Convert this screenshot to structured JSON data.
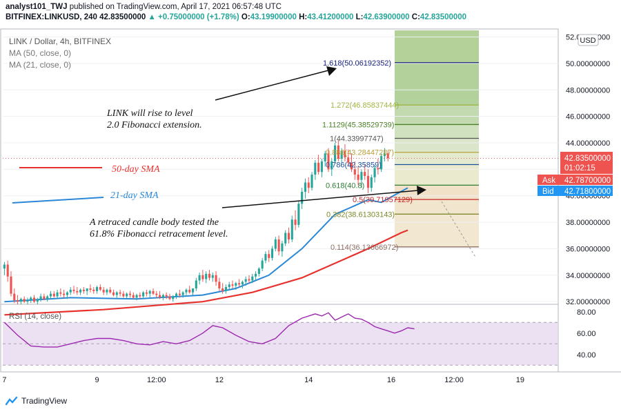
{
  "header": {
    "line1_user": "analyst101_TWJ",
    "line1_rest": " published on TradingView.com, April 17, 2021 06:57:48 UTC",
    "symbol": "BITFINEX:LINKUSD, 240",
    "price": "42.83500000",
    "change": "▲ +0.75000000 (+1.78%)",
    "o_label": "O:",
    "o": "43.19900000",
    "h_label": "H:",
    "h": "43.41200000",
    "l_label": "L:",
    "l": "42.63900000",
    "c_label": "C:",
    "c": "42.83500000"
  },
  "legend": {
    "title": "LINK / Dollar, 4h, BITFINEX",
    "ma50": "MA (50, close, 0)",
    "ma21": "MA (21, close, 0)"
  },
  "annotations": {
    "rise_line1": "LINK will rise  to level",
    "rise_line2": "2.0 Fibonacci extension.",
    "retrace_line1": "A retraced candle body tested the",
    "retrace_line2": "61.8% Fibonacci retracement level.",
    "sma50_label": "50-day SMA",
    "sma21_label": "21-day SMA"
  },
  "price_badges": {
    "currency": "USD",
    "last": "42.83500000",
    "countdown": "01:02:15",
    "ask_label": "Ask",
    "ask": "42.78700000",
    "bid_label": "Bid",
    "bid": "42.71800000"
  },
  "rsi": {
    "label": "RSI (14, close)"
  },
  "footer": {
    "brand": "TradingView"
  },
  "colors": {
    "up": "#26a69a",
    "down": "#ef5350",
    "sma50": "#e8312d",
    "sma21": "#2a87d6",
    "rsi_line": "#9c27b0",
    "rsi_band": "#e6d7ee",
    "fib_line": "#9eb542",
    "ask": "#ef5350",
    "bid": "#2196f3"
  },
  "chart_data": {
    "type": "candlestick",
    "ylim": [
      31.8,
      52.5
    ],
    "y_ticks": [
      {
        "v": 32,
        "label": "32.00000000"
      },
      {
        "v": 34,
        "label": "34.00000000"
      },
      {
        "v": 36,
        "label": "36.00000000"
      },
      {
        "v": 38,
        "label": "38.00000000"
      },
      {
        "v": 40,
        "label": "40.00000000"
      },
      {
        "v": 42,
        "label": "42.00000000"
      },
      {
        "v": 44,
        "label": "44.00000000"
      },
      {
        "v": 46,
        "label": "46.00000000"
      },
      {
        "v": 48,
        "label": "48.00000000"
      },
      {
        "v": 50,
        "label": "50.00000000"
      },
      {
        "v": 52,
        "label": "52.00000000"
      }
    ],
    "x_ticks": [
      {
        "i": 0,
        "label": "7"
      },
      {
        "i": 28,
        "label": "9"
      },
      {
        "i": 46,
        "label": "12:00"
      },
      {
        "i": 65,
        "label": "12"
      },
      {
        "i": 92,
        "label": "14"
      },
      {
        "i": 117,
        "label": "16"
      },
      {
        "i": 136,
        "label": "12:00"
      },
      {
        "i": 156,
        "label": "19"
      }
    ],
    "candles": [
      [
        34.5,
        35.0,
        34.0,
        34.8
      ],
      [
        34.8,
        35.1,
        33.5,
        33.9
      ],
      [
        33.9,
        34.3,
        32.4,
        32.6
      ],
      [
        32.6,
        33.0,
        31.9,
        32.1
      ],
      [
        32.1,
        32.5,
        31.8,
        32.0
      ],
      [
        32.0,
        32.3,
        31.8,
        32.2
      ],
      [
        32.2,
        32.4,
        31.9,
        32.0
      ],
      [
        32.0,
        32.3,
        31.8,
        32.1
      ],
      [
        32.1,
        32.4,
        31.9,
        32.3
      ],
      [
        32.3,
        32.5,
        31.9,
        32.0
      ],
      [
        32.0,
        32.3,
        31.8,
        32.2
      ],
      [
        32.2,
        32.6,
        32.0,
        32.4
      ],
      [
        32.4,
        32.6,
        32.1,
        32.2
      ],
      [
        32.2,
        32.5,
        32.0,
        32.4
      ],
      [
        32.4,
        32.8,
        32.2,
        32.6
      ],
      [
        32.6,
        32.8,
        32.3,
        32.4
      ],
      [
        32.4,
        32.9,
        32.2,
        32.7
      ],
      [
        32.7,
        33.0,
        32.4,
        32.6
      ],
      [
        32.6,
        32.9,
        32.3,
        32.5
      ],
      [
        32.5,
        32.8,
        32.2,
        32.7
      ],
      [
        32.7,
        33.1,
        32.5,
        32.9
      ],
      [
        32.9,
        33.2,
        32.6,
        32.8
      ],
      [
        32.8,
        33.1,
        32.5,
        32.7
      ],
      [
        32.7,
        33.0,
        32.5,
        32.9
      ],
      [
        32.9,
        33.1,
        32.6,
        32.8
      ],
      [
        32.8,
        33.0,
        32.5,
        33.0
      ],
      [
        33.0,
        33.3,
        32.7,
        32.9
      ],
      [
        32.9,
        33.1,
        32.6,
        32.8
      ],
      [
        32.8,
        33.2,
        32.6,
        33.1
      ],
      [
        33.1,
        33.3,
        32.8,
        32.9
      ],
      [
        32.9,
        33.1,
        32.5,
        32.7
      ],
      [
        32.7,
        33.0,
        32.5,
        32.9
      ],
      [
        32.9,
        33.1,
        32.6,
        32.7
      ],
      [
        32.7,
        32.9,
        32.4,
        32.5
      ],
      [
        32.5,
        32.8,
        32.3,
        32.7
      ],
      [
        32.7,
        32.9,
        32.4,
        32.6
      ],
      [
        32.6,
        32.8,
        32.3,
        32.4
      ],
      [
        32.4,
        32.7,
        32.2,
        32.6
      ],
      [
        32.6,
        32.8,
        32.3,
        32.5
      ],
      [
        32.5,
        32.7,
        32.2,
        32.3
      ],
      [
        32.3,
        32.6,
        32.1,
        32.5
      ],
      [
        32.5,
        32.7,
        32.2,
        32.4
      ],
      [
        32.4,
        32.8,
        32.2,
        32.7
      ],
      [
        32.7,
        32.9,
        32.4,
        32.6
      ],
      [
        32.6,
        32.9,
        32.3,
        32.8
      ],
      [
        32.8,
        33.0,
        32.5,
        32.6
      ],
      [
        32.6,
        32.8,
        32.3,
        32.5
      ],
      [
        32.5,
        32.8,
        32.2,
        32.3
      ],
      [
        32.3,
        32.6,
        32.1,
        32.5
      ],
      [
        32.5,
        32.7,
        32.2,
        32.4
      ],
      [
        32.4,
        32.6,
        32.1,
        32.2
      ],
      [
        32.2,
        32.5,
        32.0,
        32.4
      ],
      [
        32.4,
        32.7,
        32.2,
        32.6
      ],
      [
        32.6,
        32.9,
        32.3,
        32.5
      ],
      [
        32.5,
        32.8,
        32.3,
        32.7
      ],
      [
        32.7,
        33.0,
        32.5,
        32.9
      ],
      [
        32.9,
        33.2,
        32.6,
        32.7
      ],
      [
        32.7,
        33.0,
        32.5,
        33.0
      ],
      [
        33.0,
        33.8,
        32.8,
        33.6
      ],
      [
        33.6,
        34.2,
        33.3,
        34.0
      ],
      [
        34.0,
        34.4,
        33.5,
        33.7
      ],
      [
        33.7,
        34.3,
        33.4,
        34.1
      ],
      [
        34.1,
        34.4,
        33.6,
        33.8
      ],
      [
        33.8,
        34.2,
        33.5,
        34.0
      ],
      [
        34.0,
        34.3,
        33.2,
        33.5
      ],
      [
        33.5,
        33.8,
        32.8,
        33.0
      ],
      [
        33.0,
        33.4,
        32.6,
        32.8
      ],
      [
        32.8,
        33.3,
        32.6,
        33.1
      ],
      [
        33.1,
        33.5,
        32.9,
        33.3
      ],
      [
        33.3,
        33.6,
        33.0,
        33.2
      ],
      [
        33.2,
        33.5,
        32.9,
        33.4
      ],
      [
        33.4,
        33.7,
        33.1,
        33.3
      ],
      [
        33.3,
        33.6,
        33.0,
        33.5
      ],
      [
        33.5,
        33.9,
        33.2,
        33.7
      ],
      [
        33.7,
        34.0,
        33.4,
        33.6
      ],
      [
        33.6,
        34.1,
        33.4,
        33.9
      ],
      [
        33.9,
        34.3,
        33.6,
        34.1
      ],
      [
        34.1,
        34.6,
        33.9,
        34.5
      ],
      [
        34.5,
        35.3,
        34.3,
        35.1
      ],
      [
        35.1,
        35.8,
        34.9,
        35.6
      ],
      [
        35.6,
        35.9,
        35.0,
        35.3
      ],
      [
        35.3,
        36.2,
        35.1,
        36.0
      ],
      [
        36.0,
        36.9,
        35.8,
        36.7
      ],
      [
        36.7,
        37.0,
        35.5,
        35.8
      ],
      [
        35.8,
        36.6,
        35.4,
        36.4
      ],
      [
        36.4,
        37.4,
        36.2,
        37.2
      ],
      [
        37.2,
        37.6,
        36.4,
        36.7
      ],
      [
        36.7,
        38.5,
        36.5,
        38.2
      ],
      [
        38.2,
        38.9,
        37.4,
        37.8
      ],
      [
        37.8,
        39.6,
        37.6,
        39.4
      ],
      [
        39.4,
        40.6,
        39.0,
        40.3
      ],
      [
        40.3,
        41.3,
        39.8,
        41.0
      ],
      [
        41.0,
        41.4,
        40.2,
        40.6
      ],
      [
        40.6,
        41.8,
        40.4,
        41.6
      ],
      [
        41.6,
        42.7,
        41.2,
        42.5
      ],
      [
        42.5,
        43.1,
        41.6,
        41.8
      ],
      [
        41.8,
        42.8,
        41.4,
        42.6
      ],
      [
        42.6,
        43.4,
        42.2,
        43.2
      ],
      [
        43.2,
        43.6,
        41.8,
        42.0
      ],
      [
        42.0,
        42.8,
        41.5,
        42.6
      ],
      [
        42.6,
        44.0,
        42.4,
        43.8
      ],
      [
        43.8,
        44.2,
        42.6,
        42.8
      ],
      [
        42.8,
        43.6,
        42.5,
        43.4
      ],
      [
        43.4,
        43.9,
        42.6,
        42.9
      ],
      [
        42.9,
        43.5,
        42.2,
        42.5
      ],
      [
        42.5,
        43.2,
        41.8,
        42.0
      ],
      [
        42.0,
        42.6,
        41.2,
        41.6
      ],
      [
        41.6,
        42.2,
        40.8,
        41.2
      ],
      [
        41.2,
        42.0,
        40.6,
        41.8
      ],
      [
        41.8,
        42.4,
        41.2,
        41.5
      ],
      [
        41.5,
        42.0,
        40.2,
        40.6
      ],
      [
        40.6,
        41.6,
        40.3,
        41.4
      ],
      [
        41.4,
        42.3,
        41.0,
        42.1
      ],
      [
        42.1,
        42.8,
        41.6,
        42.0
      ],
      [
        42.0,
        43.2,
        41.8,
        43.0
      ],
      [
        43.0,
        43.6,
        42.6,
        43.2
      ],
      [
        43.2,
        43.4,
        42.6,
        42.835
      ]
    ],
    "sma50": [
      [
        0,
        31.0
      ],
      [
        30,
        31.4
      ],
      [
        60,
        32.0
      ],
      [
        75,
        32.7
      ],
      [
        90,
        33.8
      ],
      [
        100,
        34.9
      ],
      [
        110,
        36.0
      ],
      [
        120,
        37.2
      ],
      [
        122,
        37.4
      ]
    ],
    "sma21": [
      [
        0,
        32.0
      ],
      [
        20,
        32.3
      ],
      [
        40,
        32.2
      ],
      [
        60,
        32.5
      ],
      [
        70,
        33.0
      ],
      [
        80,
        34.0
      ],
      [
        90,
        36.0
      ],
      [
        100,
        38.6
      ],
      [
        110,
        39.7
      ],
      [
        114,
        39.5
      ],
      [
        122,
        40.6
      ]
    ],
    "fib_levels": [
      {
        "v": 50.06192352,
        "label": "1.618(50.06192352)",
        "color": "#1a237e"
      },
      {
        "v": 46.85837444,
        "label": "1.272(46.85837444)",
        "color": "#9eb542"
      },
      {
        "v": 45.38529739,
        "label": "1.1129(45.38529739)",
        "color": "#4a7f25"
      },
      {
        "v": 44.33997747,
        "label": "1(44.33997747)",
        "color": "#555555"
      },
      {
        "v": 43.28447287,
        "label": "0.886(43.28447287)",
        "color": "#b7a13a"
      },
      {
        "v": 42.35859,
        "label": "0.786(42.35859)",
        "color": "#1b4f9c"
      },
      {
        "v": 40.8,
        "label": "0.618(40.8)",
        "color": "#2e7d32"
      },
      {
        "v": 39.71957129,
        "label": "0.5(39.71957129)",
        "color": "#c62828"
      },
      {
        "v": 38.61303143,
        "label": "0.382(38.61303143)",
        "color": "#7c8a2a"
      },
      {
        "v": 36.13666972,
        "label": "0.114(36.13666972)",
        "color": "#8d6e63"
      }
    ],
    "fib_zone_top": 52.5,
    "rsi": {
      "ylim": [
        25,
        85
      ],
      "band": [
        30,
        70
      ],
      "ticks": [
        {
          "v": 80,
          "label": "80.00"
        },
        {
          "v": 60,
          "label": "60.00"
        },
        {
          "v": 40,
          "label": "40.00"
        }
      ],
      "points": [
        [
          0,
          70
        ],
        [
          4,
          58
        ],
        [
          8,
          48
        ],
        [
          12,
          47
        ],
        [
          16,
          47
        ],
        [
          20,
          50
        ],
        [
          24,
          53
        ],
        [
          28,
          55
        ],
        [
          32,
          55
        ],
        [
          36,
          53
        ],
        [
          40,
          50
        ],
        [
          44,
          49
        ],
        [
          48,
          52
        ],
        [
          52,
          50
        ],
        [
          56,
          53
        ],
        [
          60,
          60
        ],
        [
          63,
          67
        ],
        [
          66,
          65
        ],
        [
          70,
          58
        ],
        [
          74,
          52
        ],
        [
          78,
          50
        ],
        [
          82,
          55
        ],
        [
          86,
          67
        ],
        [
          90,
          74
        ],
        [
          94,
          78
        ],
        [
          96,
          76
        ],
        [
          98,
          79
        ],
        [
          100,
          72
        ],
        [
          102,
          75
        ],
        [
          104,
          78
        ],
        [
          106,
          74
        ],
        [
          108,
          73
        ],
        [
          110,
          70
        ],
        [
          112,
          66
        ],
        [
          114,
          64
        ],
        [
          116,
          62
        ],
        [
          118,
          60
        ],
        [
          120,
          62
        ],
        [
          122,
          65
        ],
        [
          124,
          64
        ]
      ]
    }
  }
}
